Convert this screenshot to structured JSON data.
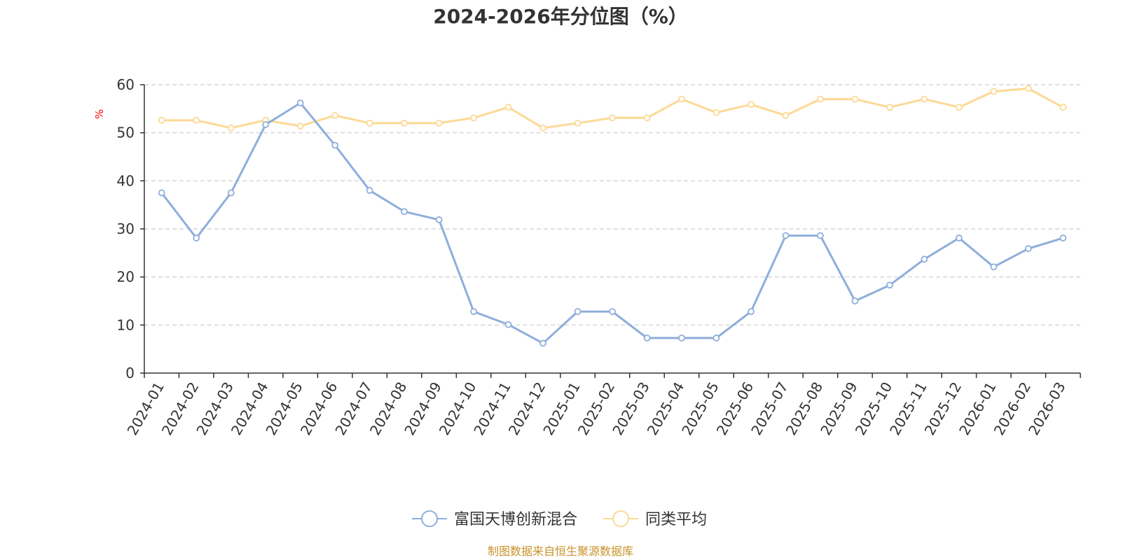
{
  "chart_data": {
    "type": "line",
    "title": "2024-2026年分位图（%）",
    "ylabel": "%",
    "ylim": [
      0,
      60
    ],
    "yticks": [
      "0",
      "10",
      "20",
      "30",
      "40",
      "50",
      "60"
    ],
    "grid": true,
    "legend_position": "bottom-center",
    "categories": [
      "2024-01",
      "2024-02",
      "2024-03",
      "2024-04",
      "2024-05",
      "2024-06",
      "2024-07",
      "2024-08",
      "2024-09",
      "2024-10",
      "2024-11",
      "2024-12",
      "2025-01",
      "2025-02",
      "2025-03",
      "2025-04",
      "2025-05",
      "2025-06",
      "2025-07",
      "2025-08",
      "2025-09",
      "2025-10",
      "2025-11",
      "2025-12",
      "2026-01",
      "2026-02",
      "2026-03"
    ],
    "series": [
      {
        "name": "富国天博创新混合",
        "color": "#8eaedb",
        "values": [
          37.5,
          28.1,
          37.5,
          51.7,
          56.2,
          47.4,
          38.0,
          33.6,
          31.9,
          12.8,
          10.1,
          6.2,
          12.8,
          12.8,
          7.3,
          7.3,
          7.3,
          12.8,
          28.6,
          28.6,
          15.0,
          18.3,
          23.7,
          28.1,
          22.1,
          25.9,
          28.1
        ]
      },
      {
        "name": "同类平均",
        "color": "#fcd995",
        "values": [
          52.6,
          52.6,
          51.0,
          52.6,
          51.4,
          53.6,
          52.0,
          52.0,
          52.0,
          53.1,
          55.3,
          51.0,
          52.0,
          53.1,
          53.1,
          57.0,
          54.2,
          55.9,
          53.6,
          57.0,
          57.0,
          55.3,
          57.0,
          55.3,
          58.6,
          59.2,
          55.3
        ]
      }
    ]
  },
  "footer": {
    "source": "制图数据来自恒生聚源数据库"
  }
}
